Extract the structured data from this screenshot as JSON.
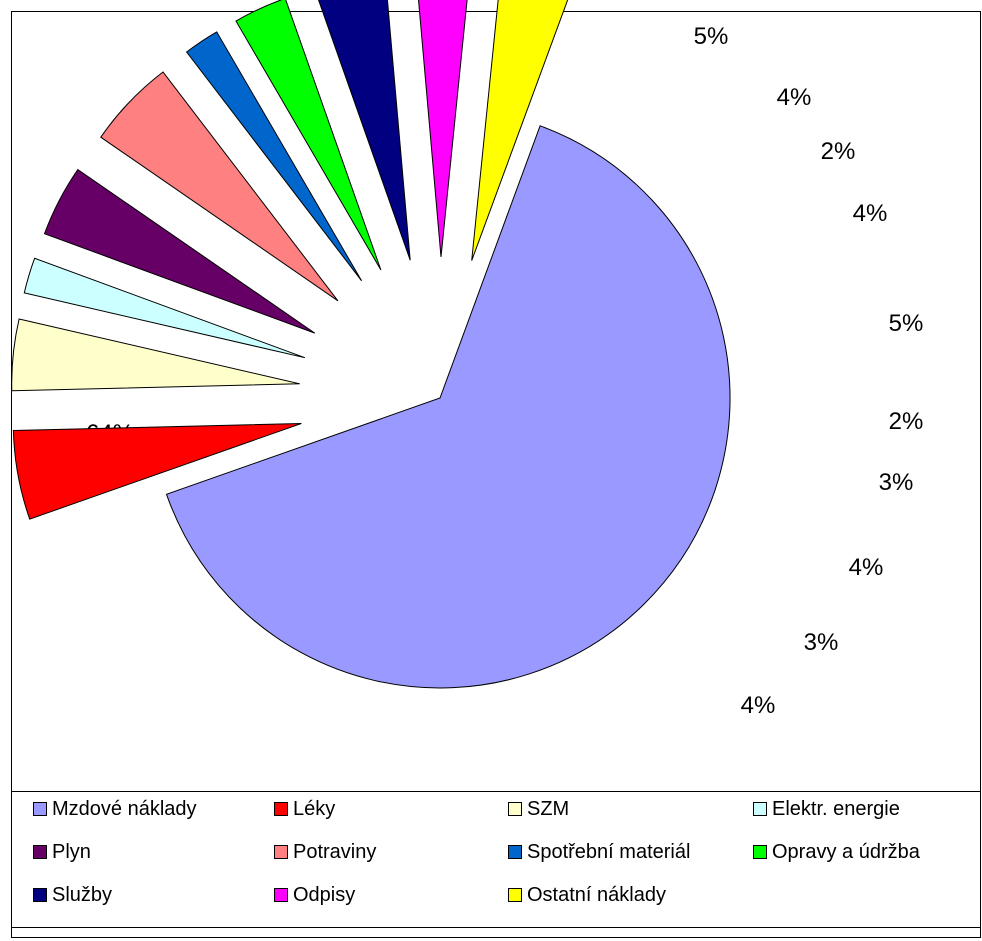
{
  "chart_data": {
    "type": "pie",
    "exploded": true,
    "legend_position": "bottom",
    "slices": [
      {
        "name": "Mzdové náklady",
        "value": 64,
        "label": "64%",
        "color": "#9999FF"
      },
      {
        "name": "Léky",
        "value": 5,
        "label": "5%",
        "color": "#FF0000"
      },
      {
        "name": "SZM",
        "value": 4,
        "label": "4%",
        "color": "#FFFFCC"
      },
      {
        "name": "Elektr. energie",
        "value": 2,
        "label": "2%",
        "color": "#CCFFFF"
      },
      {
        "name": "Plyn",
        "value": 4,
        "label": "4%",
        "color": "#660066"
      },
      {
        "name": "Potraviny",
        "value": 5,
        "label": "5%",
        "color": "#FF8080"
      },
      {
        "name": "Spotřební materiál",
        "value": 2,
        "label": "2%",
        "color": "#0066CC"
      },
      {
        "name": "Opravy a údržba",
        "value": 3,
        "label": "3%",
        "color": "#00FF00"
      },
      {
        "name": "Služby",
        "value": 4,
        "label": "4%",
        "color": "#000080"
      },
      {
        "name": "Odpisy",
        "value": 3,
        "label": "3%",
        "color": "#FF00FF"
      },
      {
        "name": "Ostatní náklady",
        "value": 4,
        "label": "4%",
        "color": "#FFFF00"
      }
    ]
  }
}
